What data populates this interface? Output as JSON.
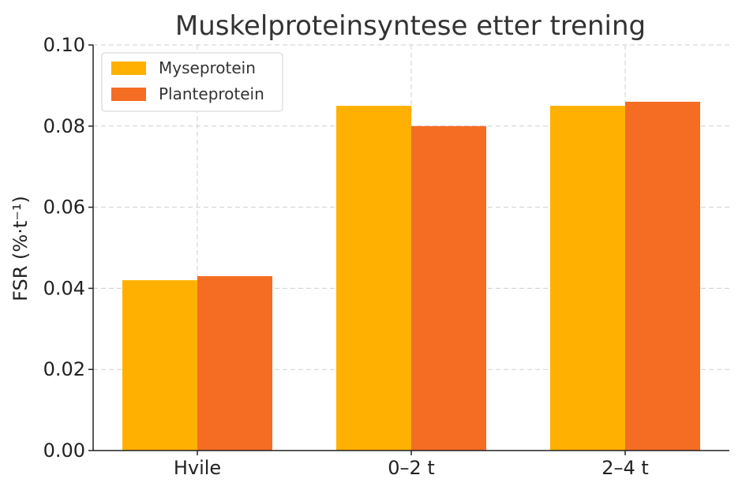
{
  "colors": {
    "series_1": "#FFB000",
    "series_2": "#F46D23",
    "grid": "#cfcfcf",
    "text": "#222222"
  },
  "chart_data": {
    "type": "bar",
    "title": "Muskelproteinsyntese etter trening",
    "xlabel": "",
    "ylabel": "FSR (%·t⁻¹)",
    "categories": [
      "Hvile",
      "0–2 t",
      "2–4 t"
    ],
    "series": [
      {
        "name": "Myseprotein",
        "values": [
          0.042,
          0.085,
          0.085
        ],
        "color": "#FFB000"
      },
      {
        "name": "Planteprotein",
        "values": [
          0.043,
          0.08,
          0.086
        ],
        "color": "#F46D23"
      }
    ],
    "ylim": [
      0,
      0.1
    ],
    "yticks": [
      "0.00",
      "0.02",
      "0.04",
      "0.06",
      "0.08",
      "0.10"
    ],
    "grid": true,
    "legend_position": "top-left"
  }
}
